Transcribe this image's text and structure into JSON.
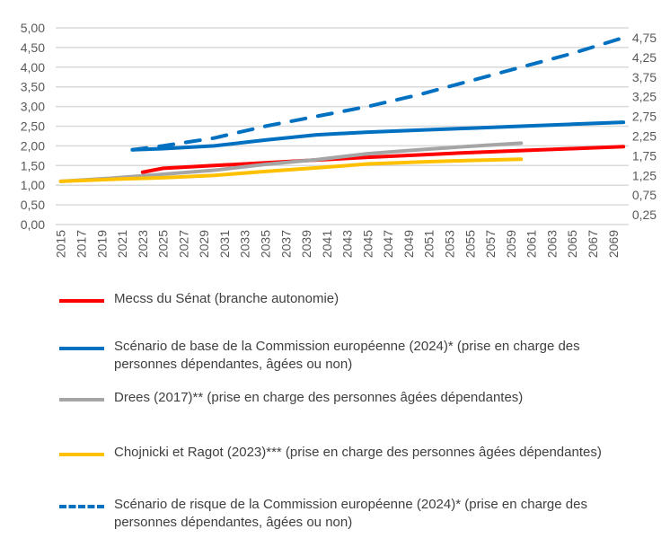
{
  "chart_data": {
    "type": "line",
    "x": [
      2015,
      2020,
      2022,
      2023,
      2025,
      2030,
      2035,
      2040,
      2045,
      2050,
      2055,
      2060,
      2065,
      2070
    ],
    "ylim": [
      0,
      5
    ],
    "ytick_step": 0.25,
    "grid": true,
    "legend": "bottom",
    "yticks": [
      "0,00",
      "0,25",
      "0,50",
      "0,75",
      "1,00",
      "1,25",
      "1,50",
      "1,75",
      "2,00",
      "2,25",
      "2,50",
      "2,75",
      "3,00",
      "3,25",
      "3,50",
      "3,75",
      "4,00",
      "4,25",
      "4,50",
      "4,75",
      "5,00"
    ],
    "xticks": [
      "2015",
      "2017",
      "2019",
      "2021",
      "2023",
      "2025",
      "2027",
      "2029",
      "2031",
      "2033",
      "2035",
      "2037",
      "2039",
      "2041",
      "2043",
      "2045",
      "2047",
      "2049",
      "2051",
      "2053",
      "2055",
      "2057",
      "2059",
      "2061",
      "2063",
      "2065",
      "2067",
      "2069"
    ],
    "series": [
      {
        "name": "Mecss du Sénat (branche autonomie)",
        "color": "#FF0000",
        "dash": false,
        "points": [
          [
            2023,
            1.33
          ],
          [
            2025,
            1.43
          ],
          [
            2030,
            1.5
          ],
          [
            2035,
            1.57
          ],
          [
            2040,
            1.64
          ],
          [
            2045,
            1.71
          ],
          [
            2050,
            1.77
          ],
          [
            2055,
            1.83
          ],
          [
            2060,
            1.88
          ],
          [
            2065,
            1.93
          ],
          [
            2070,
            1.98
          ]
        ]
      },
      {
        "name": "Scénario de base de la Commission européenne (2024)* (prise en charge des personnes dépendantes, âgées ou non)",
        "color": "#0070C0",
        "dash": false,
        "points": [
          [
            2022,
            1.9
          ],
          [
            2025,
            1.93
          ],
          [
            2030,
            2.0
          ],
          [
            2035,
            2.15
          ],
          [
            2040,
            2.28
          ],
          [
            2045,
            2.35
          ],
          [
            2050,
            2.4
          ],
          [
            2055,
            2.45
          ],
          [
            2060,
            2.5
          ],
          [
            2065,
            2.55
          ],
          [
            2070,
            2.6
          ]
        ]
      },
      {
        "name": "Drees (2017)** (prise en charge des personnes âgées dépendantes)",
        "color": "#A5A5A5",
        "dash": false,
        "points": [
          [
            2015,
            1.1
          ],
          [
            2020,
            1.18
          ],
          [
            2025,
            1.28
          ],
          [
            2030,
            1.38
          ],
          [
            2035,
            1.53
          ],
          [
            2040,
            1.65
          ],
          [
            2045,
            1.8
          ],
          [
            2050,
            1.9
          ],
          [
            2055,
            1.99
          ],
          [
            2060,
            2.07
          ]
        ]
      },
      {
        "name": "Chojnicki et Ragot (2023)*** (prise en charge des personnes âgées dépendantes)",
        "color": "#FFC000",
        "dash": false,
        "points": [
          [
            2015,
            1.1
          ],
          [
            2020,
            1.15
          ],
          [
            2025,
            1.19
          ],
          [
            2030,
            1.25
          ],
          [
            2035,
            1.35
          ],
          [
            2040,
            1.44
          ],
          [
            2045,
            1.54
          ],
          [
            2050,
            1.59
          ],
          [
            2055,
            1.63
          ],
          [
            2060,
            1.66
          ]
        ]
      },
      {
        "name": "Scénario de risque de la Commission européenne (2024)* (prise en charge des personnes dépendantes, âgées ou non)",
        "color": "#0070C0",
        "dash": true,
        "points": [
          [
            2022,
            1.9
          ],
          [
            2025,
            2.0
          ],
          [
            2030,
            2.2
          ],
          [
            2035,
            2.5
          ],
          [
            2040,
            2.75
          ],
          [
            2045,
            3.0
          ],
          [
            2050,
            3.3
          ],
          [
            2055,
            3.65
          ],
          [
            2060,
            4.0
          ],
          [
            2065,
            4.35
          ],
          [
            2070,
            4.75
          ]
        ]
      }
    ]
  }
}
